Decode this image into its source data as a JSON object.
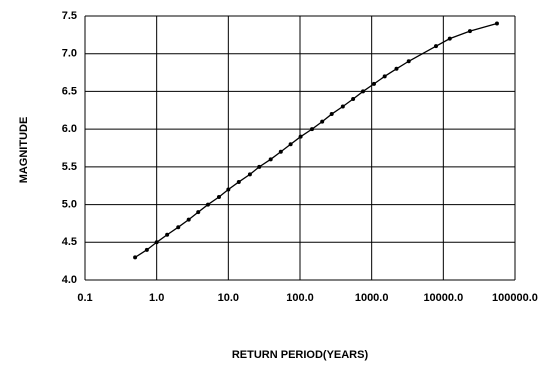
{
  "chart_data": {
    "type": "line",
    "x_label": "RETURN PERIOD(YEARS)",
    "y_label": "MAGNITUDE",
    "x": [
      0.5,
      0.73,
      1.0,
      1.4,
      2.0,
      2.8,
      3.8,
      5.2,
      7.4,
      10,
      14,
      20,
      27,
      39,
      54,
      74,
      102,
      147,
      204,
      277,
      396,
      551,
      757,
      1077,
      1520,
      2220,
      3290,
      7900,
      12300,
      23500,
      56000
    ],
    "series": [
      {
        "color": "#000000",
        "values": [
          4.3,
          4.4,
          4.5,
          4.6,
          4.7,
          4.8,
          4.9,
          5.0,
          5.1,
          5.2,
          5.3,
          5.4,
          5.5,
          5.6,
          5.7,
          5.8,
          5.9,
          6.0,
          6.1,
          6.2,
          6.3,
          6.4,
          6.5,
          6.6,
          6.7,
          6.8,
          6.9,
          7.1,
          7.2,
          7.3,
          7.4
        ]
      }
    ],
    "xscale": "log",
    "xlim": [
      0.1,
      100000
    ],
    "xticks": [
      0.1,
      {
        "value": 1,
        "label": "1.0"
      },
      {
        "value": 10,
        "label": "10.0"
      },
      {
        "value": 100,
        "label": "100.0"
      },
      {
        "value": 1000,
        "label": "1000.0"
      },
      {
        "value": 10000,
        "label": "10000.0"
      },
      {
        "value": 100000,
        "label": "100000.0"
      }
    ],
    "ylim": [
      4,
      7.5
    ],
    "yticks": [
      {
        "value": 4,
        "label": "4.0"
      },
      4.5,
      {
        "value": 5,
        "label": "5.0"
      },
      5.5,
      {
        "value": 6,
        "label": "6.0"
      },
      6.5,
      {
        "value": 7,
        "label": "7.0"
      },
      7.5
    ],
    "grid": true
  }
}
